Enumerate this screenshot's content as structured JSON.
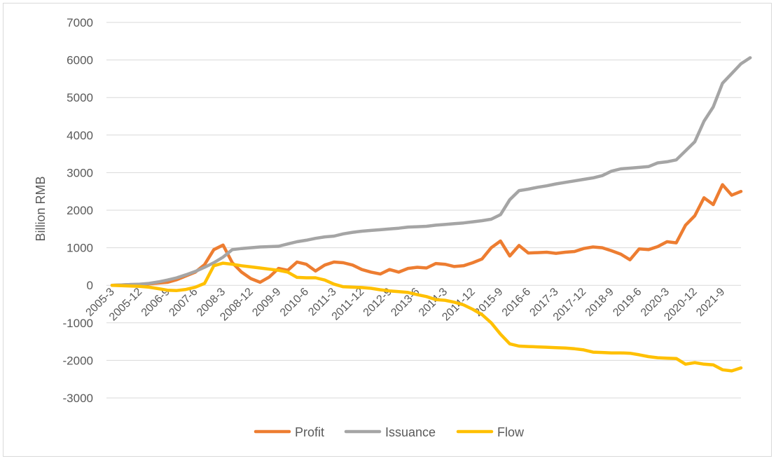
{
  "chart_data": {
    "type": "line",
    "title": "",
    "xlabel": "",
    "ylabel": "Billion RMB",
    "ylim": [
      -3000,
      7000
    ],
    "yticks": [
      -3000,
      -2000,
      -1000,
      0,
      1000,
      2000,
      3000,
      4000,
      5000,
      6000,
      7000
    ],
    "grid": "horizontal",
    "legend": "bottom",
    "x_start": "2005-3",
    "x_end": "2022-3",
    "x_tick_labels": [
      "2005-3",
      "2005-12",
      "2006-9",
      "2007-6",
      "2008-3",
      "2008-12",
      "2009-9",
      "2010-6",
      "2011-3",
      "2011-12",
      "2012-9",
      "2013-6",
      "2014-3",
      "2014-12",
      "2015-9",
      "2016-6",
      "2017-3",
      "2017-12",
      "2018-9",
      "2019-6",
      "2020-3",
      "2020-12",
      "2021-9"
    ],
    "series": [
      {
        "name": "Profit",
        "color": "#ed7d31",
        "values": [
          0,
          10,
          20,
          20,
          40,
          60,
          80,
          150,
          250,
          350,
          550,
          950,
          1070,
          600,
          350,
          180,
          80,
          220,
          450,
          400,
          620,
          560,
          380,
          540,
          620,
          600,
          540,
          420,
          350,
          300,
          420,
          350,
          450,
          480,
          460,
          580,
          560,
          500,
          520,
          600,
          700,
          1000,
          1180,
          780,
          1060,
          860,
          870,
          880,
          850,
          880,
          900,
          980,
          1020,
          1000,
          920,
          830,
          680,
          970,
          950,
          1030,
          1160,
          1130,
          1600,
          1850,
          2330,
          2150,
          2680,
          2400,
          2500
        ]
      },
      {
        "name": "Issuance",
        "color": "#a5a5a5",
        "values": [
          0,
          10,
          20,
          30,
          50,
          90,
          140,
          200,
          280,
          370,
          480,
          600,
          750,
          950,
          980,
          1000,
          1020,
          1030,
          1040,
          1100,
          1160,
          1200,
          1250,
          1290,
          1310,
          1370,
          1410,
          1440,
          1460,
          1480,
          1500,
          1520,
          1550,
          1560,
          1570,
          1600,
          1620,
          1640,
          1660,
          1690,
          1720,
          1760,
          1880,
          2280,
          2520,
          2560,
          2610,
          2650,
          2700,
          2740,
          2780,
          2820,
          2860,
          2920,
          3040,
          3100,
          3120,
          3140,
          3160,
          3260,
          3290,
          3340,
          3580,
          3820,
          4370,
          4750,
          5380,
          5640,
          5900,
          6060
        ]
      },
      {
        "name": "Flow",
        "color": "#ffc000",
        "values": [
          0,
          -10,
          -20,
          -30,
          -50,
          -90,
          -130,
          -140,
          -110,
          -50,
          50,
          520,
          590,
          560,
          520,
          490,
          460,
          430,
          400,
          350,
          210,
          200,
          200,
          140,
          30,
          -40,
          -50,
          -60,
          -80,
          -120,
          -150,
          -170,
          -190,
          -250,
          -300,
          -380,
          -400,
          -450,
          -520,
          -640,
          -780,
          -1000,
          -1300,
          -1560,
          -1620,
          -1630,
          -1640,
          -1650,
          -1660,
          -1670,
          -1690,
          -1720,
          -1780,
          -1790,
          -1800,
          -1800,
          -1810,
          -1850,
          -1900,
          -1930,
          -1940,
          -1950,
          -2100,
          -2060,
          -2100,
          -2120,
          -2250,
          -2280,
          -2200
        ]
      }
    ]
  }
}
